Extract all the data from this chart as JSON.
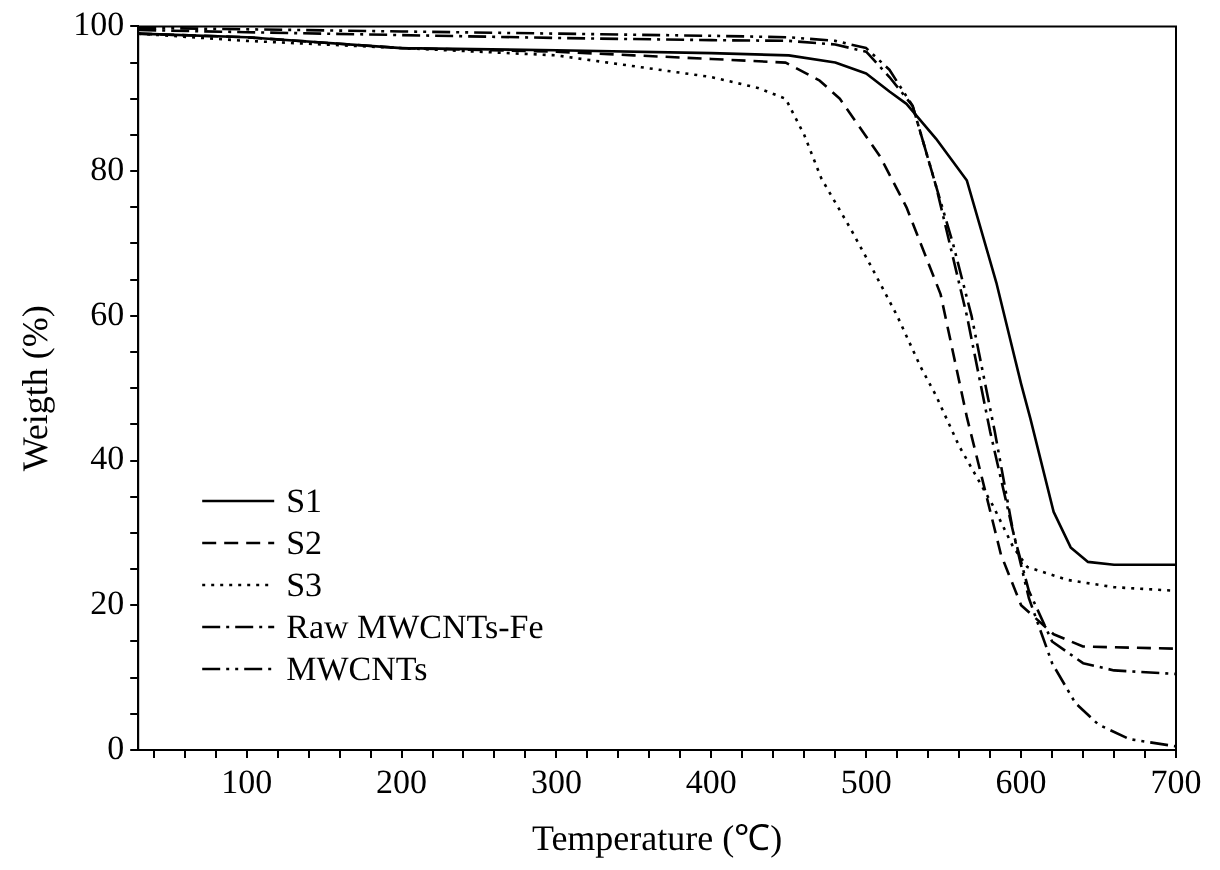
{
  "chart_data": {
    "type": "line",
    "xlabel": "Temperature (℃)",
    "ylabel": "Weigth (%)",
    "xlim": [
      30,
      700
    ],
    "ylim": [
      0,
      100
    ],
    "xticks": [
      {
        "value": 40,
        "label": null
      },
      {
        "value": 60,
        "label": null
      },
      {
        "value": 80,
        "label": null
      },
      100,
      {
        "value": 120,
        "label": null
      },
      {
        "value": 140,
        "label": null
      },
      {
        "value": 160,
        "label": null
      },
      {
        "value": 180,
        "label": null
      },
      200,
      {
        "value": 220,
        "label": null
      },
      {
        "value": 240,
        "label": null
      },
      {
        "value": 260,
        "label": null
      },
      {
        "value": 280,
        "label": null
      },
      300,
      {
        "value": 320,
        "label": null
      },
      {
        "value": 340,
        "label": null
      },
      {
        "value": 360,
        "label": null
      },
      {
        "value": 380,
        "label": null
      },
      400,
      {
        "value": 420,
        "label": null
      },
      {
        "value": 440,
        "label": null
      },
      {
        "value": 460,
        "label": null
      },
      {
        "value": 480,
        "label": null
      },
      500,
      {
        "value": 520,
        "label": null
      },
      {
        "value": 540,
        "label": null
      },
      {
        "value": 560,
        "label": null
      },
      {
        "value": 580,
        "label": null
      },
      600,
      {
        "value": 620,
        "label": null
      },
      {
        "value": 640,
        "label": null
      },
      {
        "value": 660,
        "label": null
      },
      {
        "value": 680,
        "label": null
      },
      700
    ],
    "yticks": [
      0,
      {
        "value": 5,
        "label": null
      },
      {
        "value": 10,
        "label": null
      },
      {
        "value": 15,
        "label": null
      },
      20,
      {
        "value": 25,
        "label": null
      },
      {
        "value": 30,
        "label": null
      },
      {
        "value": 35,
        "label": null
      },
      40,
      {
        "value": 45,
        "label": null
      },
      {
        "value": 50,
        "label": null
      },
      {
        "value": 55,
        "label": null
      },
      60,
      {
        "value": 65,
        "label": null
      },
      {
        "value": 70,
        "label": null
      },
      {
        "value": 75,
        "label": null
      },
      80,
      {
        "value": 85,
        "label": null
      },
      {
        "value": 90,
        "label": null
      },
      {
        "value": 95,
        "label": null
      },
      100
    ],
    "grid": false,
    "legend": "bottom left",
    "marker": "none",
    "series": [
      {
        "name": "S1",
        "color": "#000000",
        "line_style": "solid",
        "x": [
          30,
          100,
          200,
          300,
          400,
          450,
          480,
          500,
          515,
          526,
          545,
          565,
          584,
          600,
          606,
          621,
          632,
          643,
          660,
          700
        ],
        "values": [
          99,
          98.5,
          97,
          96.7,
          96.3,
          96,
          95,
          93.5,
          91,
          89.3,
          84.5,
          78.7,
          64.6,
          50.6,
          45.8,
          32.9,
          28,
          26,
          25.6,
          25.6
        ]
      },
      {
        "name": "S2",
        "color": "#000000",
        "line_style": "dashed",
        "x": [
          30,
          100,
          200,
          300,
          350,
          400,
          448,
          470,
          483,
          509,
          526,
          548,
          565,
          587,
          600,
          621,
          640,
          700
        ],
        "values": [
          99,
          98.5,
          97,
          96.5,
          96,
          95.5,
          95,
          92.5,
          90,
          82,
          75,
          63,
          46,
          27,
          20,
          16,
          14.3,
          14
        ]
      },
      {
        "name": "S3",
        "color": "#000000",
        "line_style": "dotted",
        "x": [
          30,
          100,
          200,
          300,
          400,
          430,
          448,
          460,
          471,
          490,
          504,
          520,
          535,
          545,
          560,
          582,
          595,
          604,
          630,
          660,
          700
        ],
        "values": [
          99,
          98,
          97,
          96,
          93,
          91.5,
          90,
          85,
          79,
          72,
          66.5,
          60,
          53,
          49,
          42,
          33.7,
          28,
          25.3,
          23.5,
          22.5,
          22
        ]
      },
      {
        "name": "Raw MWCNTs-Fe",
        "color": "#000000",
        "line_style": "dashdot",
        "x": [
          30,
          100,
          200,
          300,
          400,
          450,
          480,
          500,
          515,
          530,
          545,
          555,
          565,
          580,
          595,
          605,
          620,
          640,
          660,
          700
        ],
        "values": [
          99.5,
          99.2,
          98.8,
          98.4,
          98.1,
          98,
          97.5,
          96.5,
          93,
          89,
          78,
          69,
          60,
          44,
          30,
          22,
          15,
          12,
          11,
          10.5
        ]
      },
      {
        "name": "MWCNTs",
        "color": "#000000",
        "line_style": "dashdotdot",
        "x": [
          30,
          100,
          200,
          300,
          400,
          450,
          480,
          500,
          515,
          530,
          545,
          556,
          568,
          583,
          595,
          605,
          620,
          635,
          650,
          670,
          700
        ],
        "values": [
          99.8,
          99.6,
          99.3,
          99,
          98.7,
          98.5,
          98,
          97,
          94,
          89,
          78,
          70,
          60,
          44,
          30,
          21,
          12,
          6.5,
          3.5,
          1.5,
          0.5
        ]
      }
    ]
  }
}
